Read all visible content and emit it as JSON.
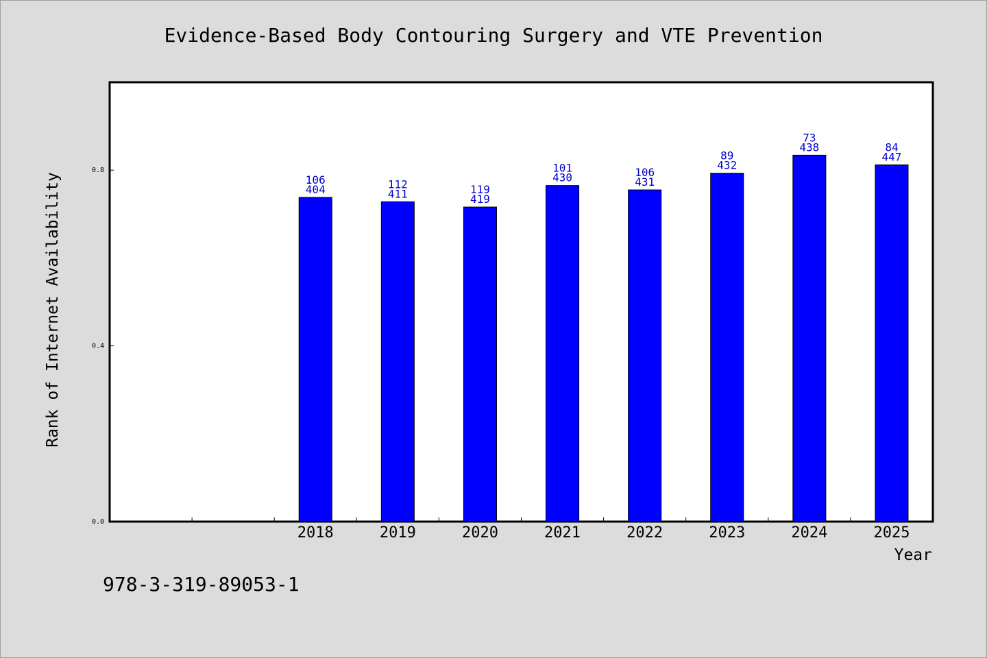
{
  "chart_data": {
    "type": "bar",
    "title": "Evidence-Based Body Contouring Surgery and VTE Prevention",
    "xlabel": "Year",
    "ylabel": "Rank of Internet Availability",
    "ylim": [
      0,
      1.0
    ],
    "yticks": [
      "0.0",
      "0.4",
      "0.8"
    ],
    "ytick_values": [
      0.0,
      0.4,
      0.8
    ],
    "categories": [
      "2018",
      "2019",
      "2020",
      "2021",
      "2022",
      "2023",
      "2024",
      "2025"
    ],
    "values": [
      0.738,
      0.728,
      0.716,
      0.765,
      0.755,
      0.793,
      0.834,
      0.812
    ],
    "labels_top": [
      "106",
      "112",
      "119",
      "101",
      "106",
      "89",
      "73",
      "84"
    ],
    "labels_bottom": [
      "404",
      "411",
      "419",
      "430",
      "431",
      "432",
      "438",
      "447"
    ],
    "leading_empty_slots": 2,
    "bar_color": "#0000ff",
    "label_color": "#0000cc",
    "grid": false
  },
  "footer": {
    "isbn": "978-3-319-89053-1"
  }
}
